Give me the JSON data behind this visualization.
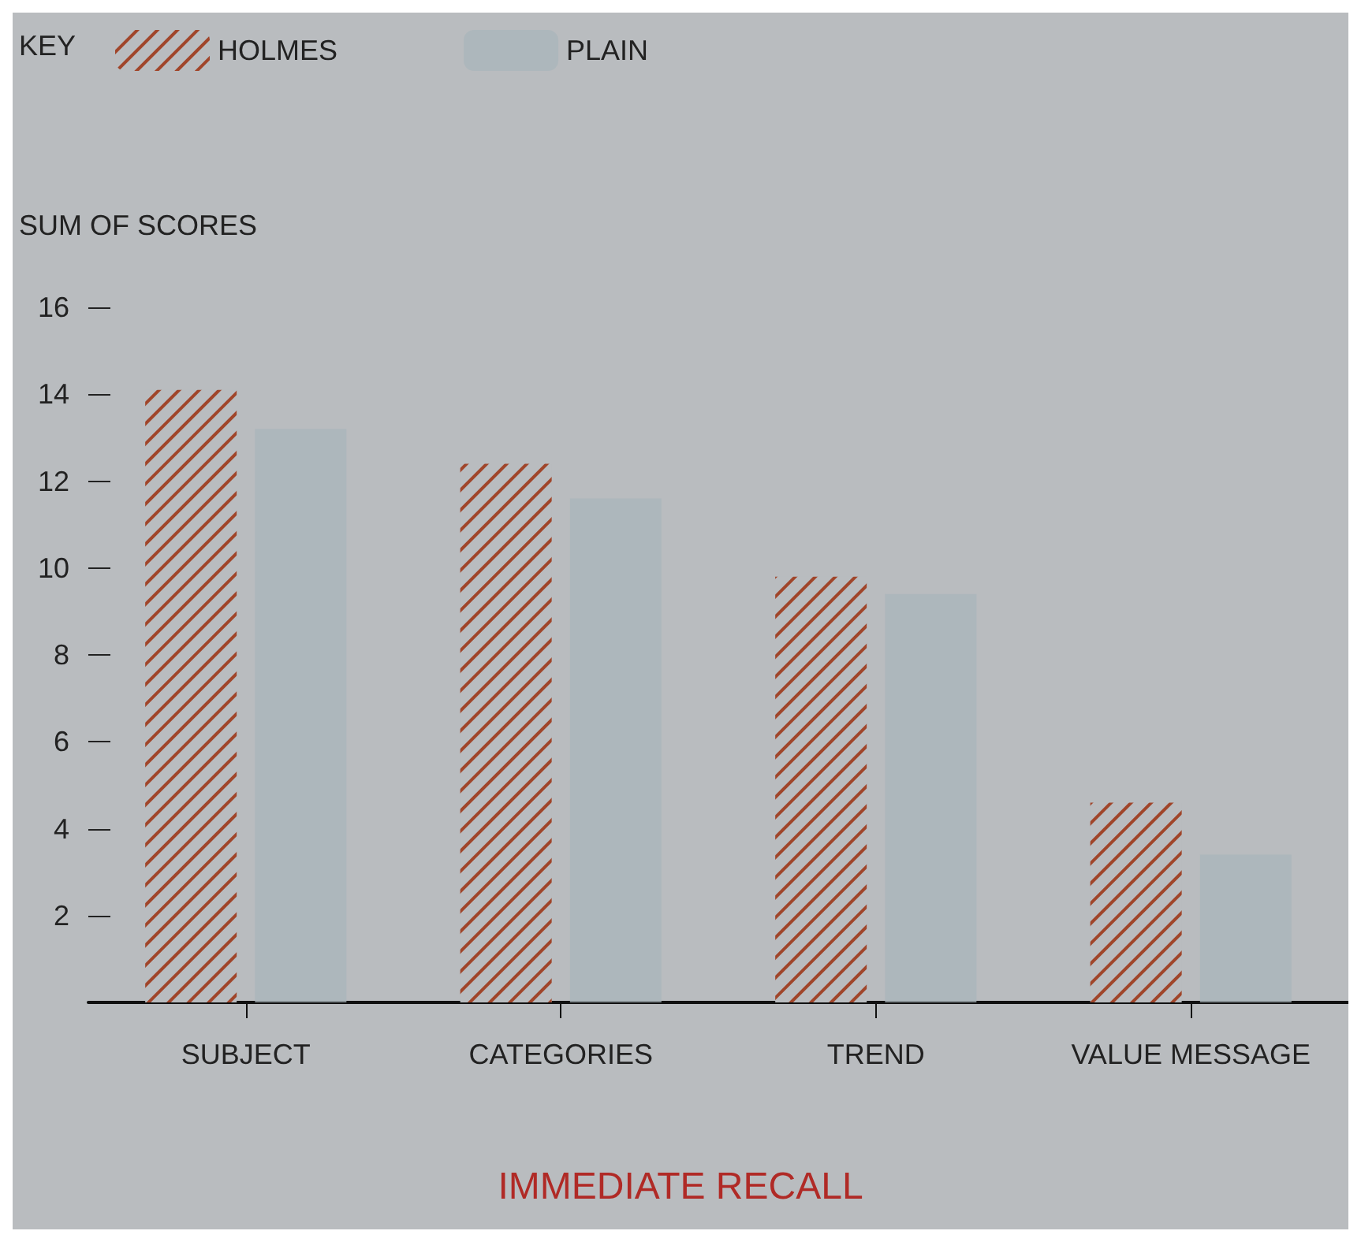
{
  "chart_data": {
    "type": "bar",
    "title": "IMMEDIATE RECALL",
    "ylabel": "SUM OF SCORES",
    "legend_title": "KEY",
    "categories": [
      "SUBJECT",
      "CATEGORIES",
      "TREND",
      "VALUE MESSAGE"
    ],
    "series": [
      {
        "name": "HOLMES",
        "color": "#a0452a",
        "values": [
          14.1,
          12.4,
          9.8,
          4.6
        ]
      },
      {
        "name": "PLAIN",
        "color": "#a9b6bb",
        "values": [
          13.2,
          11.6,
          9.4,
          3.4
        ]
      }
    ],
    "ylim": [
      0,
      16
    ],
    "yticks": [
      2,
      4,
      6,
      8,
      10,
      12,
      14,
      16
    ],
    "legend": "top left",
    "grid": false
  }
}
